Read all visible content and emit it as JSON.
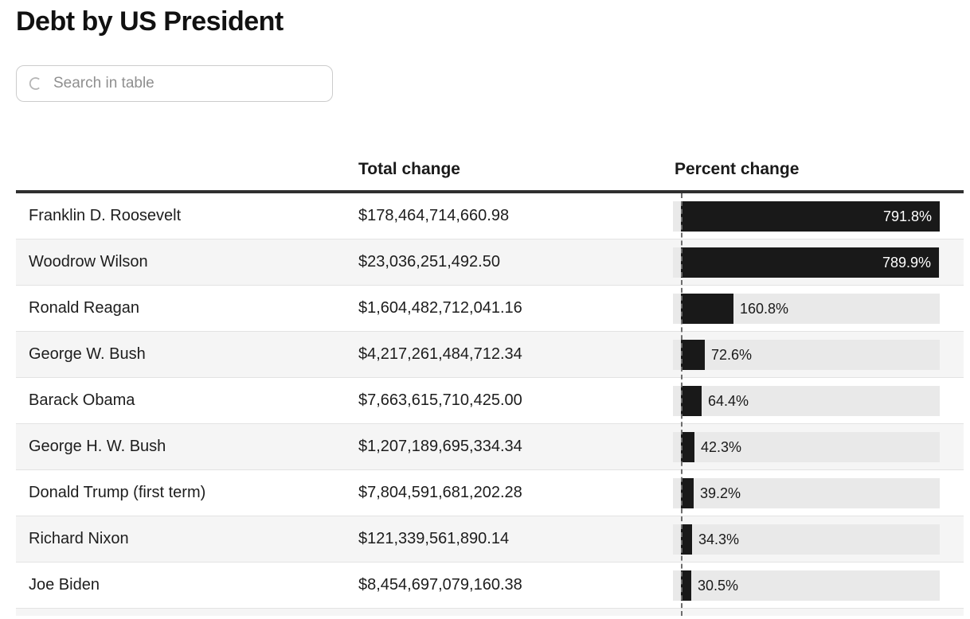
{
  "page": {
    "title": "Debt by US President"
  },
  "search": {
    "placeholder": "Search in table",
    "value": "",
    "icon": "search-icon"
  },
  "table": {
    "header": {
      "president_label": "",
      "total_label": "Total change",
      "percent_label": "Percent change"
    },
    "rows": [
      {
        "president": "Franklin D. Roosevelt",
        "total_change": "$178,464,714,660.98",
        "percent_label": "791.8%",
        "percent": 791.8
      },
      {
        "president": "Woodrow Wilson",
        "total_change": "$23,036,251,492.50",
        "percent_label": "789.9%",
        "percent": 789.9
      },
      {
        "president": "Ronald Reagan",
        "total_change": "$1,604,482,712,041.16",
        "percent_label": "160.8%",
        "percent": 160.8
      },
      {
        "president": "George W. Bush",
        "total_change": "$4,217,261,484,712.34",
        "percent_label": "72.6%",
        "percent": 72.6
      },
      {
        "president": "Barack Obama",
        "total_change": "$7,663,615,710,425.00",
        "percent_label": "64.4%",
        "percent": 64.4
      },
      {
        "president": "George H. W. Bush",
        "total_change": "$1,207,189,695,334.34",
        "percent_label": "42.3%",
        "percent": 42.3
      },
      {
        "president": "Donald Trump (first term)",
        "total_change": "$7,804,591,681,202.28",
        "percent_label": "39.2%",
        "percent": 39.2
      },
      {
        "president": "Richard Nixon",
        "total_change": "$121,339,561,890.14",
        "percent_label": "34.3%",
        "percent": 34.3
      },
      {
        "president": "Joe Biden",
        "total_change": "$8,454,697,079,160.38",
        "percent_label": "30.5%",
        "percent": 30.5
      }
    ]
  },
  "chart_data": {
    "type": "bar",
    "orientation": "horizontal",
    "title": "Debt by US President",
    "categories": [
      "Franklin D. Roosevelt",
      "Woodrow Wilson",
      "Ronald Reagan",
      "George W. Bush",
      "Barack Obama",
      "George H. W. Bush",
      "Donald Trump (first term)",
      "Richard Nixon",
      "Joe Biden"
    ],
    "series": [
      {
        "name": "Total change",
        "values": [
          178464714660.98,
          23036251492.5,
          1604482712041.16,
          4217261484712.34,
          7663615710425.0,
          1207189695334.34,
          7804591681202.28,
          121339561890.14,
          8454697079160.38
        ]
      },
      {
        "name": "Percent change",
        "values": [
          791.8,
          789.9,
          160.8,
          72.6,
          64.4,
          42.3,
          39.2,
          34.3,
          30.5
        ]
      }
    ],
    "xlabel": "Percent change",
    "xlim": [
      -25,
      791.8
    ],
    "grid": false,
    "legend": "none",
    "sorted": "descending by percent change"
  },
  "colors": {
    "bar_fill": "#191919",
    "bar_track": "#e9e9e9",
    "bar_label_inside": "#ffffff",
    "text": "#1d1d1d",
    "alt_row_bg": "#f5f5f5",
    "header_border": "#2f2f2f",
    "row_border": "#e3e3e3",
    "zero_line": "#6e6e6e",
    "search_border": "#cccccc",
    "placeholder": "#8f8f8f"
  }
}
